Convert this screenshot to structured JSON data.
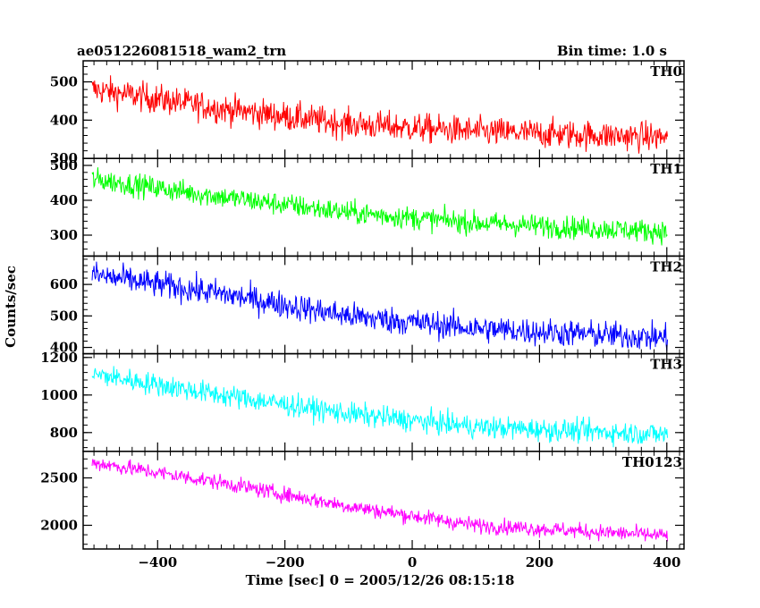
{
  "header": {
    "title": "ae051226081518_wam2_trn",
    "bin_time": "Bin time: 1.0 s"
  },
  "chart_data": {
    "type": "line",
    "ylabel": "Counts/sec",
    "xlabel": "Time [sec] 0 = 2005/12/26 08:15:18",
    "xlim": [
      -517,
      427
    ],
    "x_ticks": [
      -400,
      -200,
      0,
      200,
      400
    ],
    "x_tick_labels": [
      "−400",
      "−200",
      "0",
      "200",
      "400"
    ],
    "panels": [
      {
        "name": "TH0",
        "color": "#ff0000",
        "ylim": [
          300,
          555
        ],
        "y_ticks": [
          300,
          400,
          500
        ],
        "y_tick_labels": [
          "300",
          "400",
          "500"
        ],
        "trend": [
          [
            -500,
            480
          ],
          [
            -300,
            430
          ],
          [
            -100,
            390
          ],
          [
            100,
            370
          ],
          [
            400,
            355
          ]
        ],
        "noise": 35
      },
      {
        "name": "TH1",
        "color": "#00ff00",
        "ylim": [
          240,
          520
        ],
        "y_ticks": [
          300,
          400,
          500
        ],
        "y_tick_labels": [
          "300",
          "400",
          "500"
        ],
        "trend": [
          [
            -500,
            460
          ],
          [
            -300,
            410
          ],
          [
            -100,
            365
          ],
          [
            100,
            335
          ],
          [
            400,
            310
          ]
        ],
        "noise": 30
      },
      {
        "name": "TH2",
        "color": "#0000ff",
        "ylim": [
          380,
          690
        ],
        "y_ticks": [
          400,
          500,
          600
        ],
        "y_tick_labels": [
          "400",
          "500",
          "600"
        ],
        "trend": [
          [
            -500,
            630
          ],
          [
            -300,
            570
          ],
          [
            -100,
            500
          ],
          [
            100,
            460
          ],
          [
            400,
            430
          ]
        ],
        "noise": 40
      },
      {
        "name": "TH3",
        "color": "#00ffff",
        "ylim": [
          700,
          1220
        ],
        "y_ticks": [
          800,
          1000,
          1200
        ],
        "y_tick_labels": [
          "800",
          "1000",
          "1200"
        ],
        "trend": [
          [
            -500,
            1110
          ],
          [
            -300,
            1000
          ],
          [
            -100,
            900
          ],
          [
            100,
            830
          ],
          [
            400,
            790
          ]
        ],
        "noise": 55
      },
      {
        "name": "TH0123",
        "color": "#ff00ff",
        "ylim": [
          1750,
          2780
        ],
        "y_ticks": [
          2000,
          2500
        ],
        "y_tick_labels": [
          "2000",
          "2500"
        ],
        "trend": [
          [
            -500,
            2660
          ],
          [
            -300,
            2450
          ],
          [
            -100,
            2200
          ],
          [
            100,
            2000
          ],
          [
            400,
            1890
          ]
        ],
        "noise": 75
      }
    ]
  }
}
